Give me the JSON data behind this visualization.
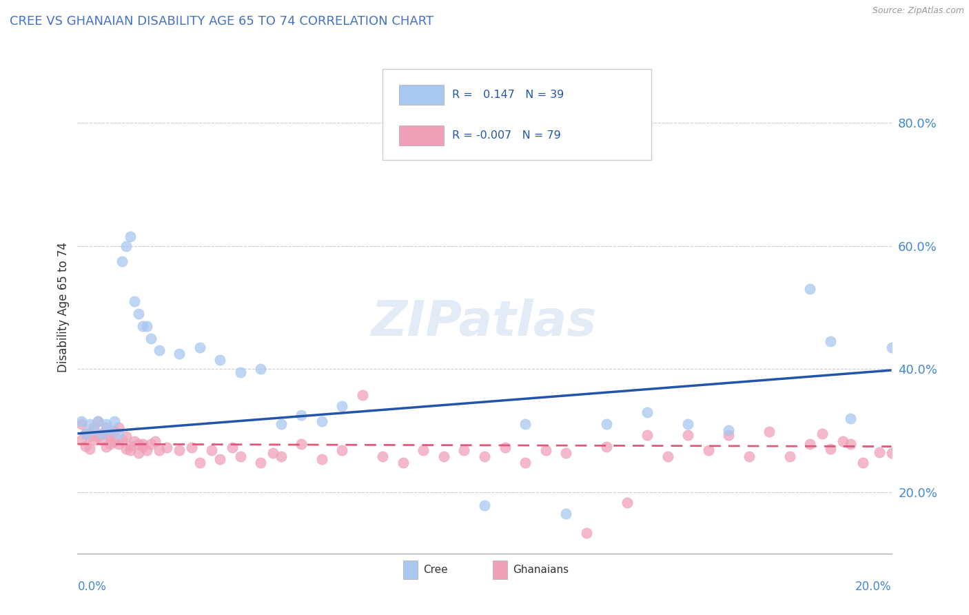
{
  "title": "CREE VS GHANAIAN DISABILITY AGE 65 TO 74 CORRELATION CHART",
  "source": "Source: ZipAtlas.com",
  "ylabel": "Disability Age 65 to 74",
  "xlim": [
    0.0,
    0.2
  ],
  "ylim": [
    0.1,
    0.9
  ],
  "ytick_vals": [
    0.2,
    0.4,
    0.6,
    0.8
  ],
  "ytick_labels": [
    "20.0%",
    "40.0%",
    "60.0%",
    "80.0%"
  ],
  "cree_color": "#a8c8f0",
  "ghanaian_color": "#f0a0b8",
  "cree_line_color": "#2255aa",
  "ghanaian_line_color": "#e05878",
  "cree_trend_x": [
    0.0,
    0.2
  ],
  "cree_trend_y": [
    0.295,
    0.398
  ],
  "gh_trend_x": [
    0.0,
    0.2
  ],
  "gh_trend_y": [
    0.278,
    0.274
  ],
  "cree_points_x": [
    0.001,
    0.002,
    0.003,
    0.004,
    0.005,
    0.006,
    0.007,
    0.008,
    0.009,
    0.01,
    0.011,
    0.012,
    0.013,
    0.014,
    0.015,
    0.016,
    0.017,
    0.018,
    0.02,
    0.025,
    0.03,
    0.035,
    0.04,
    0.045,
    0.05,
    0.055,
    0.06,
    0.065,
    0.1,
    0.11,
    0.12,
    0.13,
    0.14,
    0.15,
    0.16,
    0.18,
    0.185,
    0.19,
    0.2
  ],
  "cree_points_y": [
    0.315,
    0.295,
    0.31,
    0.3,
    0.315,
    0.295,
    0.31,
    0.3,
    0.315,
    0.295,
    0.575,
    0.6,
    0.615,
    0.51,
    0.49,
    0.47,
    0.47,
    0.45,
    0.43,
    0.425,
    0.435,
    0.415,
    0.395,
    0.4,
    0.31,
    0.325,
    0.315,
    0.34,
    0.178,
    0.31,
    0.165,
    0.31,
    0.33,
    0.31,
    0.3,
    0.53,
    0.445,
    0.32,
    0.435
  ],
  "ghanaian_points_x": [
    0.001,
    0.001,
    0.002,
    0.002,
    0.003,
    0.003,
    0.004,
    0.004,
    0.005,
    0.005,
    0.006,
    0.006,
    0.007,
    0.007,
    0.007,
    0.008,
    0.008,
    0.009,
    0.009,
    0.01,
    0.01,
    0.011,
    0.012,
    0.012,
    0.013,
    0.013,
    0.014,
    0.015,
    0.015,
    0.016,
    0.016,
    0.017,
    0.018,
    0.019,
    0.02,
    0.022,
    0.025,
    0.028,
    0.03,
    0.033,
    0.035,
    0.038,
    0.04,
    0.045,
    0.048,
    0.05,
    0.055,
    0.06,
    0.065,
    0.07,
    0.075,
    0.08,
    0.085,
    0.09,
    0.095,
    0.1,
    0.105,
    0.11,
    0.115,
    0.12,
    0.125,
    0.13,
    0.135,
    0.14,
    0.145,
    0.15,
    0.155,
    0.16,
    0.165,
    0.17,
    0.175,
    0.18,
    0.183,
    0.185,
    0.188,
    0.19,
    0.193,
    0.197,
    0.2
  ],
  "ghanaian_points_y": [
    0.285,
    0.31,
    0.295,
    0.275,
    0.29,
    0.27,
    0.305,
    0.285,
    0.29,
    0.315,
    0.285,
    0.295,
    0.295,
    0.273,
    0.305,
    0.29,
    0.278,
    0.298,
    0.283,
    0.305,
    0.278,
    0.285,
    0.29,
    0.27,
    0.268,
    0.275,
    0.283,
    0.278,
    0.263,
    0.273,
    0.278,
    0.268,
    0.278,
    0.283,
    0.268,
    0.272,
    0.268,
    0.272,
    0.248,
    0.268,
    0.253,
    0.272,
    0.258,
    0.248,
    0.263,
    0.258,
    0.278,
    0.253,
    0.268,
    0.358,
    0.258,
    0.248,
    0.268,
    0.258,
    0.268,
    0.258,
    0.272,
    0.248,
    0.268,
    0.263,
    0.133,
    0.273,
    0.183,
    0.293,
    0.258,
    0.293,
    0.268,
    0.293,
    0.258,
    0.298,
    0.258,
    0.278,
    0.295,
    0.27,
    0.283,
    0.278,
    0.248,
    0.265,
    0.263
  ]
}
